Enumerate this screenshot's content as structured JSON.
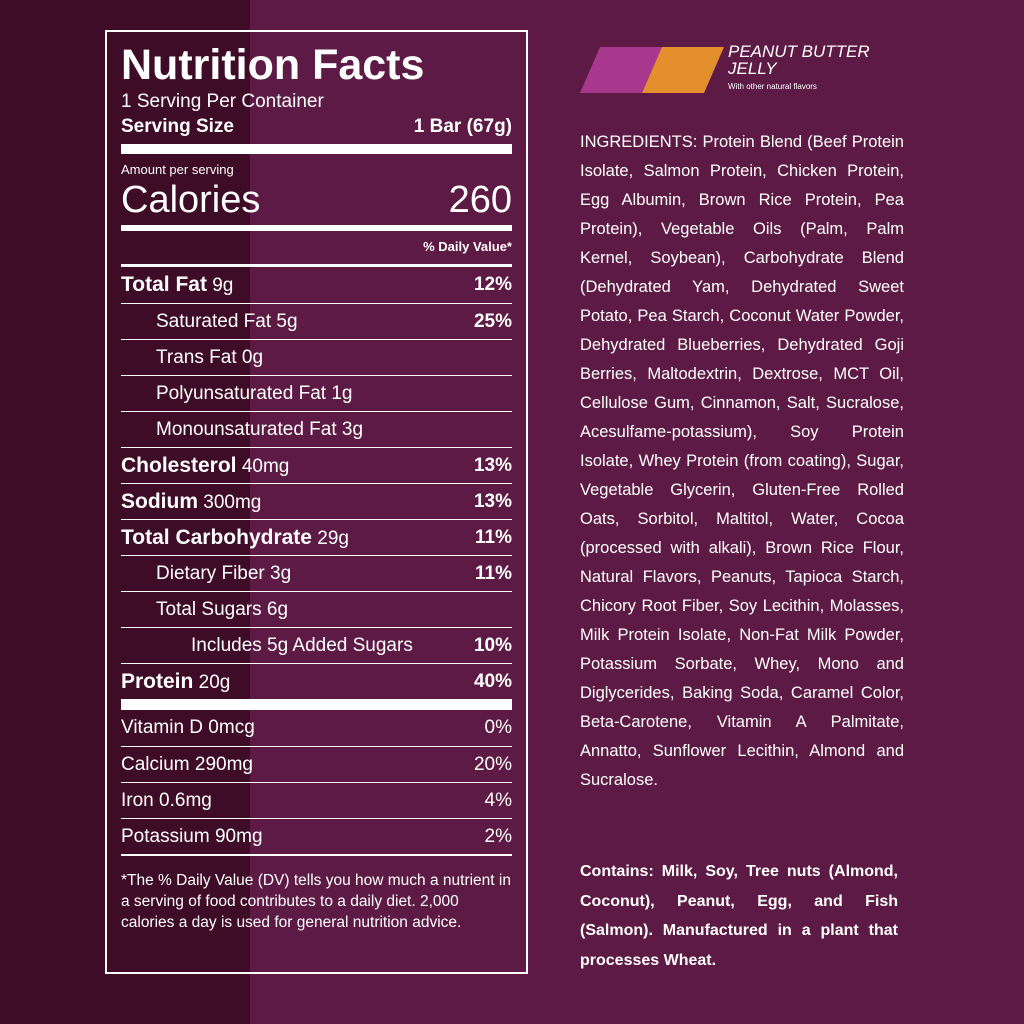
{
  "label": {
    "title": "Nutrition Facts",
    "servings": "1 Serving Per Container",
    "serving_size_label": "Serving Size",
    "serving_size": "1 Bar (67g)",
    "amount_per_serving": "Amount per serving",
    "calories_label": "Calories",
    "calories": "260",
    "daily_value_header": "% Daily Value*",
    "nutrients": [
      {
        "name": "Total Fat",
        "amount": "9g",
        "dv": "12%",
        "sub": [
          {
            "name": "Saturated Fat",
            "amount": "5g",
            "dv": "25%"
          },
          {
            "name": "Trans Fat",
            "amount": "0g"
          },
          {
            "name": "Polyunsaturated Fat",
            "amount": "1g"
          },
          {
            "name": "Monounsaturated Fat",
            "amount": "3g"
          }
        ]
      },
      {
        "name": "Cholesterol",
        "amount": "40mg",
        "dv": "13%"
      },
      {
        "name": "Sodium",
        "amount": "300mg",
        "dv": "13%"
      },
      {
        "name": "Total Carbohydrate",
        "amount": "29g",
        "dv": "11%",
        "sub": [
          {
            "name": "Dietary Fiber",
            "amount": "3g",
            "dv": "11%"
          },
          {
            "name": "Total Sugars",
            "amount": "6g",
            "sub": [
              {
                "name": "Includes 5g Added Sugars",
                "dv": "10%"
              }
            ]
          }
        ]
      },
      {
        "name": "Protein",
        "amount": "20g",
        "dv": "40%"
      }
    ],
    "vitamins": [
      {
        "name": "Vitamin D",
        "amount": "0mcg",
        "dv": "0%"
      },
      {
        "name": "Calcium",
        "amount": "290mg",
        "dv": "20%"
      },
      {
        "name": "Iron",
        "amount": "0.6mg",
        "dv": "4%"
      },
      {
        "name": "Potassium",
        "amount": "90mg",
        "dv": "2%"
      }
    ],
    "footnote": "*The % Daily Value (DV) tells you how much a nutrient in a serving of food contributes to a daily diet. 2,000 calories a day is used for general nutrition advice."
  },
  "flavor": {
    "name": "PEANUT BUTTER JELLY",
    "note": "With other natural flavors"
  },
  "ingredients": "INGREDIENTS: Protein Blend (Beef Protein Isolate, Salmon Protein, Chicken Protein, Egg Albumin, Brown Rice Protein, Pea Protein), Vegetable Oils (Palm, Palm Kernel, Soybean), Carbohydrate Blend (Dehydrated Yam, Dehydrated Sweet Potato, Pea Starch, Coconut Water Powder, Dehydrated Blueberries, Dehydrated Goji Berries, Maltodextrin, Dextrose, MCT Oil, Cellulose Gum, Cinnamon, Salt, Sucralose, Acesulfame-potassium), Soy Protein Isolate, Whey Protein (from coating), Sugar, Vegetable Glycerin, Gluten-Free Rolled Oats, Sorbitol, Maltitol, Water, Cocoa (processed with alkali), Brown Rice Flour, Natural Flavors, Peanuts, Tapioca Starch, Chicory Root Fiber, Soy Lecithin, Molasses, Milk Protein Isolate, Non-Fat Milk Powder, Potassium Sorbate, Whey, Mono and Diglycerides, Baking Soda, Caramel Color, Beta-Carotene, Vitamin A Palmitate, Annatto, Sunflower Lecithin, Almond and Sucralose.",
  "contains": "Contains: Milk, Soy, Tree nuts (Almond, Coconut), Peanut, Egg, and Fish (Salmon). Manufactured in a plant that processes Wheat."
}
